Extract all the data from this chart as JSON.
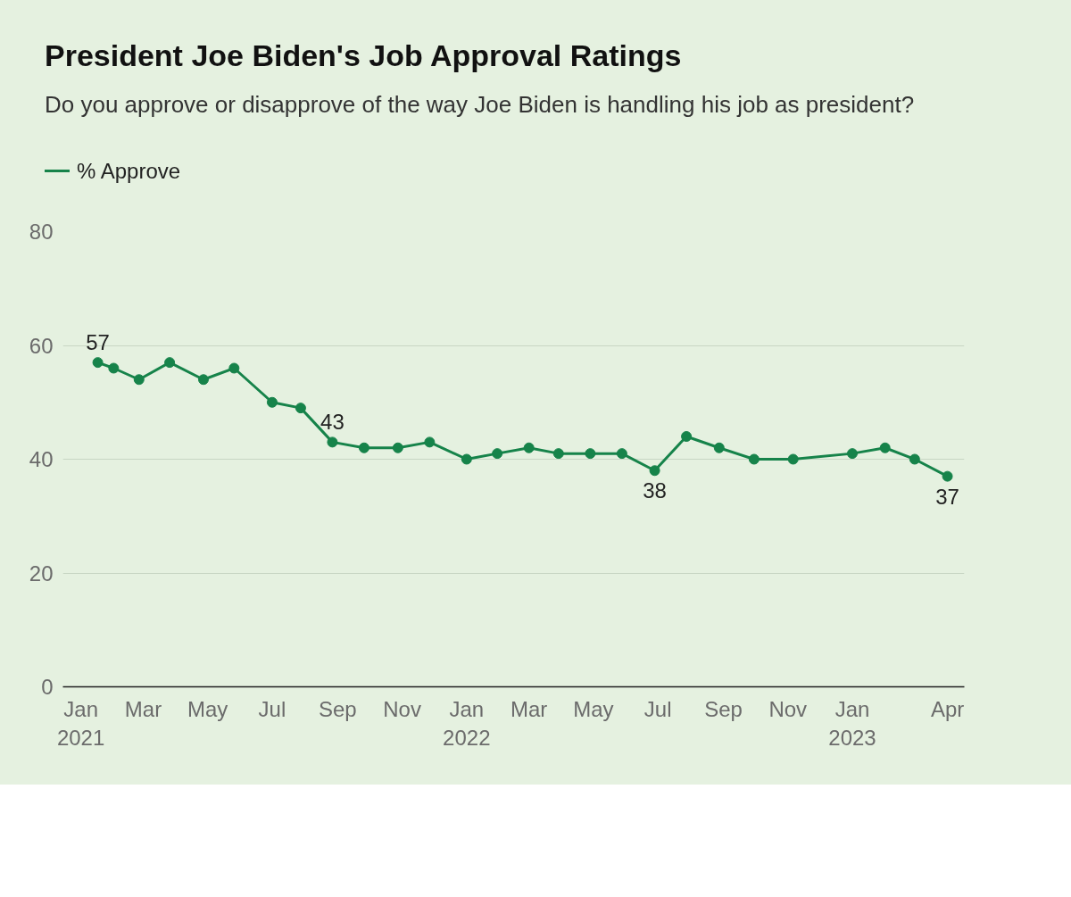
{
  "chart_data": {
    "type": "line",
    "title": "President Joe Biden's Job Approval Ratings",
    "subtitle": "Do you approve or disapprove of the way Joe Biden is handling his job as president?",
    "x": [
      "2021-01-17",
      "2021-02-01",
      "2021-02-25",
      "2021-03-26",
      "2021-04-27",
      "2021-05-26",
      "2021-07-01",
      "2021-07-28",
      "2021-08-27",
      "2021-09-26",
      "2021-10-28",
      "2021-11-27",
      "2022-01-01",
      "2022-01-30",
      "2022-03-01",
      "2022-03-29",
      "2022-04-28",
      "2022-05-28",
      "2022-06-28",
      "2022-07-28",
      "2022-08-28",
      "2022-09-30",
      "2022-11-06",
      "2023-01-01",
      "2023-02-01",
      "2023-03-01",
      "2023-04-01"
    ],
    "series": [
      {
        "name": "% Approve",
        "color": "#16834a",
        "values": [
          57,
          56,
          54,
          57,
          54,
          56,
          50,
          49,
          43,
          42,
          42,
          43,
          40,
          41,
          42,
          41,
          41,
          41,
          38,
          44,
          42,
          40,
          40,
          41,
          42,
          40,
          37
        ],
        "value_labels": [
          "57",
          null,
          null,
          null,
          null,
          null,
          null,
          null,
          "43",
          null,
          null,
          null,
          null,
          null,
          null,
          null,
          null,
          null,
          "38",
          null,
          null,
          null,
          null,
          null,
          null,
          null,
          "37"
        ]
      }
    ],
    "xlim": [
      "2020-12-15",
      "2023-04-17"
    ],
    "xticks": [
      {
        "value": "2021-01-01",
        "label": "Jan\n2021"
      },
      {
        "value": "2021-03-01",
        "label": "Mar"
      },
      {
        "value": "2021-05-01",
        "label": "May"
      },
      {
        "value": "2021-07-01",
        "label": "Jul"
      },
      {
        "value": "2021-09-01",
        "label": "Sep"
      },
      {
        "value": "2021-11-01",
        "label": "Nov"
      },
      {
        "value": "2022-01-01",
        "label": "Jan\n2022"
      },
      {
        "value": "2022-03-01",
        "label": "Mar"
      },
      {
        "value": "2022-05-01",
        "label": "May"
      },
      {
        "value": "2022-07-01",
        "label": "Jul"
      },
      {
        "value": "2022-09-01",
        "label": "Sep"
      },
      {
        "value": "2022-11-01",
        "label": "Nov"
      },
      {
        "value": "2023-01-01",
        "label": "Jan\n2023"
      },
      {
        "value": "2023-04-01",
        "label": "Apr"
      }
    ],
    "ylim": [
      0,
      80
    ],
    "yticks": [
      0,
      20,
      40,
      60,
      80
    ],
    "grid": "y",
    "legend": "top left",
    "marker": "circle",
    "line_style": "solid"
  }
}
